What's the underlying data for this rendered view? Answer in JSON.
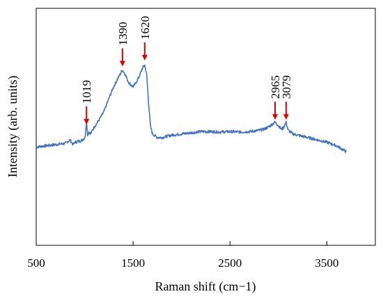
{
  "chart_data": {
    "type": "line",
    "title": "",
    "xlabel": "Raman shift (cm−1)",
    "ylabel": "Intensity (arb. units)",
    "xlim": [
      500,
      4000
    ],
    "ylim": [
      0,
      1
    ],
    "xticks": [
      500,
      1500,
      2500,
      3500
    ],
    "xtick_labels": [
      "500",
      "1500",
      "2500",
      "3500"
    ],
    "y_tick_labels_shown": false,
    "grid": false,
    "line_color": "#4472C4",
    "arrow_color": "#E00000",
    "series": [
      {
        "x": [
          500,
          600,
          700,
          800,
          850,
          880,
          900,
          950,
          980,
          1000,
          1010,
          1019,
          1030,
          1045,
          1060,
          1100,
          1150,
          1200,
          1250,
          1300,
          1350,
          1390,
          1420,
          1450,
          1480,
          1500,
          1520,
          1540,
          1560,
          1580,
          1600,
          1620,
          1640,
          1660,
          1680,
          1700,
          1750,
          1800,
          1900,
          2000,
          2100,
          2200,
          2300,
          2400,
          2500,
          2600,
          2700,
          2800,
          2850,
          2900,
          2965,
          3000,
          3030,
          3050,
          3079,
          3100,
          3150,
          3200,
          3300,
          3400,
          3500,
          3600,
          3700
        ],
        "y": [
          0.415,
          0.42,
          0.425,
          0.43,
          0.445,
          0.425,
          0.435,
          0.44,
          0.445,
          0.455,
          0.47,
          0.53,
          0.465,
          0.48,
          0.47,
          0.5,
          0.53,
          0.565,
          0.62,
          0.67,
          0.71,
          0.74,
          0.72,
          0.69,
          0.675,
          0.67,
          0.68,
          0.695,
          0.71,
          0.73,
          0.75,
          0.76,
          0.72,
          0.6,
          0.5,
          0.47,
          0.455,
          0.455,
          0.465,
          0.47,
          0.475,
          0.48,
          0.48,
          0.478,
          0.48,
          0.478,
          0.48,
          0.485,
          0.49,
          0.5,
          0.52,
          0.505,
          0.49,
          0.495,
          0.52,
          0.485,
          0.47,
          0.465,
          0.455,
          0.445,
          0.435,
          0.42,
          0.395
        ]
      }
    ],
    "annotations": [
      {
        "label": "1019",
        "x": 1019,
        "tip": 0.51
      },
      {
        "label": "1390",
        "x": 1390,
        "tip": 0.755
      },
      {
        "label": "1620",
        "x": 1620,
        "tip": 0.78
      },
      {
        "label": "2965",
        "x": 2965,
        "tip": 0.53
      },
      {
        "label": "3079",
        "x": 3079,
        "tip": 0.53
      }
    ]
  }
}
